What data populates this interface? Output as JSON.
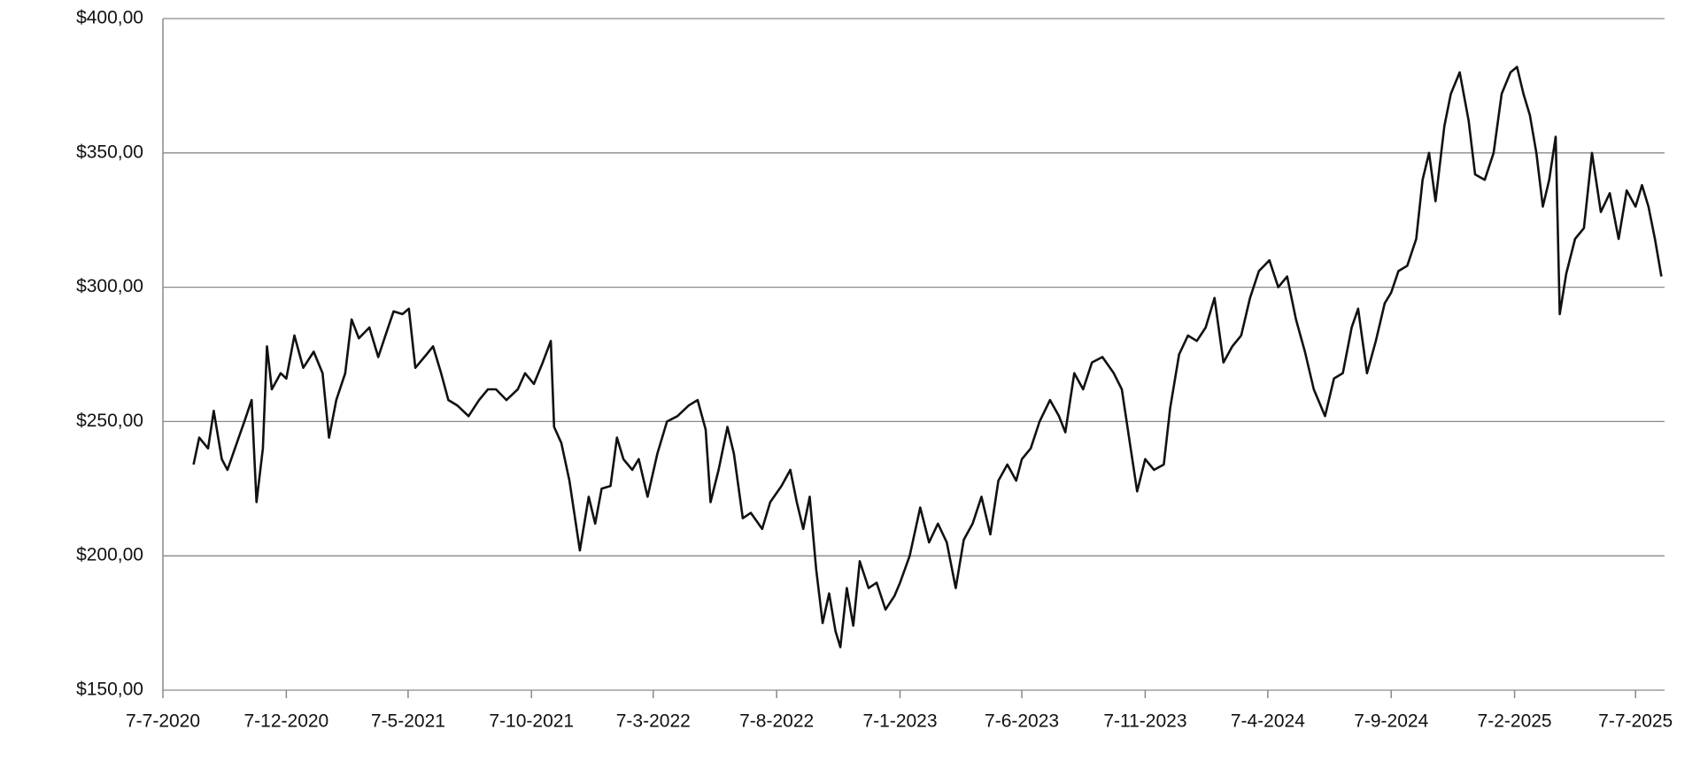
{
  "chart_data": {
    "type": "line",
    "x": [
      "2020-08-14",
      "2020-08-21",
      "2020-09-01",
      "2020-09-08",
      "2020-09-18",
      "2020-09-25",
      "2020-10-09",
      "2020-10-16",
      "2020-10-25",
      "2020-10-31",
      "2020-11-08",
      "2020-11-13",
      "2020-11-19",
      "2020-11-30",
      "2020-12-07",
      "2020-12-17",
      "2020-12-28",
      "2021-01-10",
      "2021-01-21",
      "2021-01-29",
      "2021-02-07",
      "2021-02-18",
      "2021-02-26",
      "2021-03-07",
      "2021-03-20",
      "2021-03-31",
      "2021-04-10",
      "2021-04-19",
      "2021-04-30",
      "2021-05-08",
      "2021-05-16",
      "2021-05-30",
      "2021-06-07",
      "2021-06-17",
      "2021-06-26",
      "2021-07-07",
      "2021-07-21",
      "2021-08-03",
      "2021-08-14",
      "2021-08-24",
      "2021-09-06",
      "2021-09-20",
      "2021-09-29",
      "2021-10-10",
      "2021-10-21",
      "2021-10-31",
      "2021-11-04",
      "2021-11-13",
      "2021-11-23",
      "2021-12-06",
      "2021-12-17",
      "2021-12-25",
      "2022-01-02",
      "2022-01-13",
      "2022-01-21",
      "2022-01-29",
      "2022-02-09",
      "2022-02-17",
      "2022-02-28",
      "2022-03-12",
      "2022-03-24",
      "2022-04-06",
      "2022-04-20",
      "2022-05-01",
      "2022-05-11",
      "2022-05-17",
      "2022-05-27",
      "2022-06-07",
      "2022-06-15",
      "2022-06-26",
      "2022-07-06",
      "2022-07-20",
      "2022-07-30",
      "2022-08-13",
      "2022-08-24",
      "2022-09-01",
      "2022-09-09",
      "2022-09-17",
      "2022-09-25",
      "2022-10-03",
      "2022-10-11",
      "2022-10-19",
      "2022-10-25",
      "2022-11-02",
      "2022-11-10",
      "2022-11-18",
      "2022-11-29",
      "2022-12-09",
      "2022-12-20",
      "2022-12-31",
      "2023-01-07",
      "2023-01-19",
      "2023-02-01",
      "2023-02-12",
      "2023-02-23",
      "2023-03-06",
      "2023-03-17",
      "2023-03-27",
      "2023-04-07",
      "2023-04-18",
      "2023-04-29",
      "2023-05-09",
      "2023-05-20",
      "2023-05-31",
      "2023-06-07",
      "2023-06-18",
      "2023-06-29",
      "2023-07-12",
      "2023-07-23",
      "2023-07-31",
      "2023-08-11",
      "2023-08-22",
      "2023-09-02",
      "2023-09-15",
      "2023-09-29",
      "2023-10-09",
      "2023-10-20",
      "2023-10-28",
      "2023-11-07",
      "2023-11-18",
      "2023-11-30",
      "2023-12-08",
      "2023-12-19",
      "2023-12-30",
      "2024-01-10",
      "2024-01-21",
      "2024-02-01",
      "2024-02-12",
      "2024-02-23",
      "2024-03-05",
      "2024-03-16",
      "2024-03-27",
      "2024-04-09",
      "2024-04-20",
      "2024-05-01",
      "2024-05-12",
      "2024-05-23",
      "2024-06-03",
      "2024-06-17",
      "2024-06-28",
      "2024-07-09",
      "2024-07-20",
      "2024-07-28",
      "2024-08-08",
      "2024-08-19",
      "2024-08-30",
      "2024-09-07",
      "2024-09-16",
      "2024-09-27",
      "2024-10-08",
      "2024-10-16",
      "2024-10-24",
      "2024-11-01",
      "2024-11-12",
      "2024-11-20",
      "2024-12-01",
      "2024-12-12",
      "2024-12-20",
      "2025-01-01",
      "2025-01-12",
      "2025-01-22",
      "2025-02-02",
      "2025-02-10",
      "2025-02-18",
      "2025-02-26",
      "2025-03-06",
      "2025-03-14",
      "2025-03-22",
      "2025-03-30",
      "2025-04-04",
      "2025-04-12",
      "2025-04-23",
      "2025-05-04",
      "2025-05-14",
      "2025-05-25",
      "2025-06-05",
      "2025-06-16",
      "2025-06-26",
      "2025-07-07",
      "2025-07-15",
      "2025-07-23",
      "2025-07-31",
      "2025-08-08"
    ],
    "series": [
      {
        "color": "#111111",
        "values": [
          234,
          244,
          240,
          254,
          236,
          232,
          244,
          250,
          258,
          220,
          240,
          278,
          262,
          268,
          266,
          282,
          270,
          276,
          268,
          244,
          258,
          268,
          288,
          281,
          285,
          274,
          283,
          291,
          290,
          292,
          270,
          275,
          278,
          268,
          258,
          256,
          252,
          258,
          262,
          262,
          258,
          262,
          268,
          264,
          272,
          280,
          248,
          242,
          228,
          202,
          222,
          212,
          225,
          226,
          244,
          236,
          232,
          236,
          222,
          238,
          250,
          252,
          256,
          258,
          247,
          220,
          232,
          248,
          238,
          214,
          216,
          210,
          220,
          226,
          232,
          220,
          210,
          222,
          195,
          175,
          186,
          172,
          166,
          188,
          174,
          198,
          188,
          190,
          180,
          185,
          190,
          200,
          218,
          205,
          212,
          205,
          188,
          206,
          212,
          222,
          208,
          228,
          234,
          228,
          236,
          240,
          250,
          258,
          252,
          246,
          268,
          262,
          272,
          274,
          268,
          262,
          240,
          224,
          236,
          232,
          234,
          255,
          275,
          282,
          280,
          285,
          296,
          272,
          278,
          282,
          296,
          306,
          310,
          300,
          304,
          288,
          276,
          262,
          252,
          266,
          268,
          285,
          292,
          268,
          280,
          294,
          298,
          306,
          308,
          318,
          340,
          350,
          332,
          360,
          372,
          380,
          362,
          342,
          340,
          350,
          372,
          380,
          382,
          372,
          364,
          350,
          330,
          340,
          356,
          290,
          305,
          318,
          322,
          350,
          328,
          335,
          318,
          336,
          330,
          338,
          330,
          318,
          304
        ]
      }
    ],
    "xlim": [
      "2020-07-07",
      "2025-08-12"
    ],
    "xticks": [
      {
        "value": "2020-07-07",
        "label": "7-7-2020"
      },
      {
        "value": "2020-12-07",
        "label": "7-12-2020"
      },
      {
        "value": "2021-05-07",
        "label": "7-5-2021"
      },
      {
        "value": "2021-10-07",
        "label": "7-10-2021"
      },
      {
        "value": "2022-03-07",
        "label": "7-3-2022"
      },
      {
        "value": "2022-08-07",
        "label": "7-8-2022"
      },
      {
        "value": "2023-01-07",
        "label": "7-1-2023"
      },
      {
        "value": "2023-06-07",
        "label": "7-6-2023"
      },
      {
        "value": "2023-11-07",
        "label": "7-11-2023"
      },
      {
        "value": "2024-04-07",
        "label": "7-4-2024"
      },
      {
        "value": "2024-09-07",
        "label": "7-9-2024"
      },
      {
        "value": "2025-02-07",
        "label": "7-2-2025"
      },
      {
        "value": "2025-07-07",
        "label": "7-7-2025"
      }
    ],
    "ylim": [
      150,
      400
    ],
    "yticks": [
      {
        "value": 150,
        "label": "$150,00"
      },
      {
        "value": 200,
        "label": "$200,00"
      },
      {
        "value": 250,
        "label": "$250,00"
      },
      {
        "value": 300,
        "label": "$300,00"
      },
      {
        "value": 350,
        "label": "$350,00"
      },
      {
        "value": 400,
        "label": "$400,00"
      }
    ],
    "grid": true
  }
}
